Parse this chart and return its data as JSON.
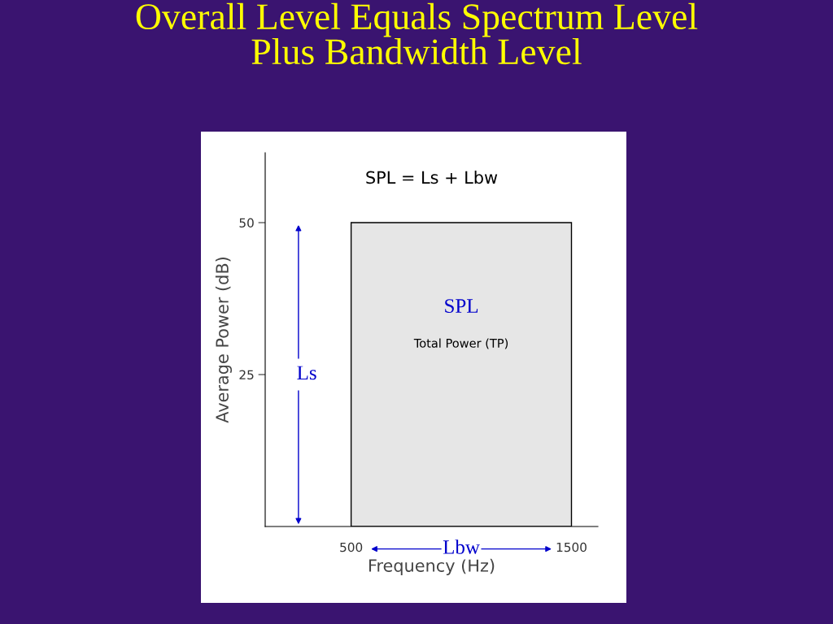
{
  "chart_data": {
    "type": "histogram",
    "title": "Overall Level Equals Spectrum Level\nPlus Bandwidth Level",
    "subtitle": "SPL = Ls + Lbw",
    "xlabel": "Frequency (Hz)",
    "ylabel": "Average Power (dB)",
    "bins": [
      500,
      1500
    ],
    "values": [
      50
    ],
    "color": "#e6e6e6",
    "xlim": [
      110,
      1620
    ],
    "ylim": [
      0,
      61.5
    ],
    "xticks": [
      500,
      1500
    ],
    "yticks": [
      25,
      50
    ],
    "grid": false,
    "annotations": [
      "SPL",
      "Total Power (TP)",
      "Ls",
      "Lbw"
    ]
  }
}
